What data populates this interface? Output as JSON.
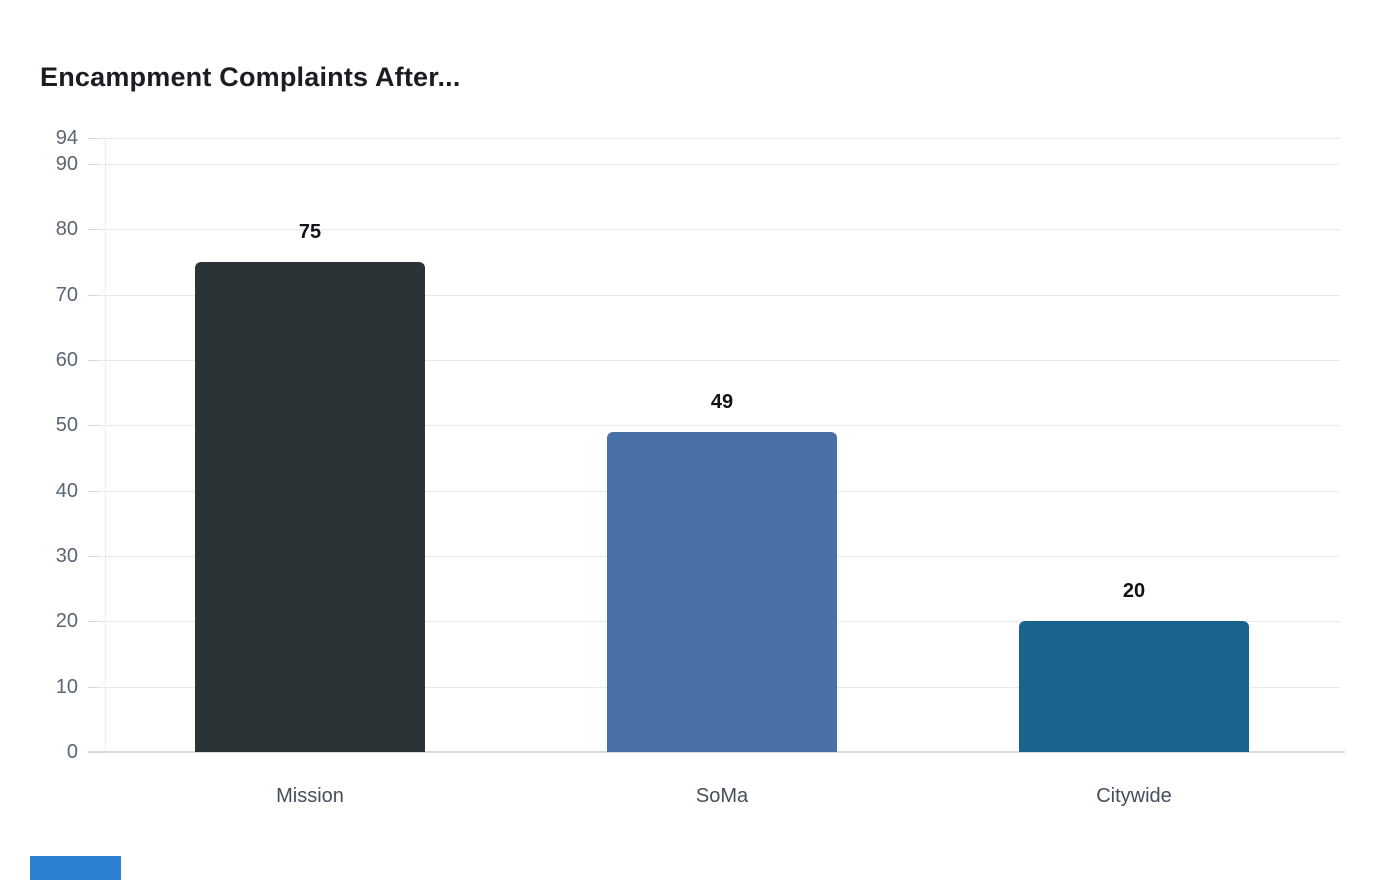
{
  "title": "Encampment Complaints After...",
  "chart_data": {
    "type": "bar",
    "title": "Encampment Complaints After...",
    "categories": [
      "Mission",
      "SoMa",
      "Citywide"
    ],
    "values": [
      75,
      49,
      20
    ],
    "value_labels": [
      "75",
      "49",
      "20"
    ],
    "bar_colors": [
      "#2b3337",
      "#4a70a8",
      "#19648c"
    ],
    "xlabel": "",
    "ylabel": "",
    "ylim": [
      0,
      94
    ],
    "yticks": [
      0,
      10,
      20,
      30,
      40,
      50,
      60,
      70,
      80,
      90,
      94
    ],
    "grid": "horizontal",
    "legend": "none",
    "value_labels_shown": true
  },
  "colors": {
    "background": "#ffffff",
    "title_text": "#1a1d21",
    "axis_tick_text": "#5a6672",
    "category_text": "#454f5b",
    "value_label_text": "#101317",
    "gridline": "#e9e9e9",
    "tick_dash": "#d4d4d4",
    "baseline": "#d9d9d9",
    "partial_bottom_element": "#2e80d4"
  }
}
